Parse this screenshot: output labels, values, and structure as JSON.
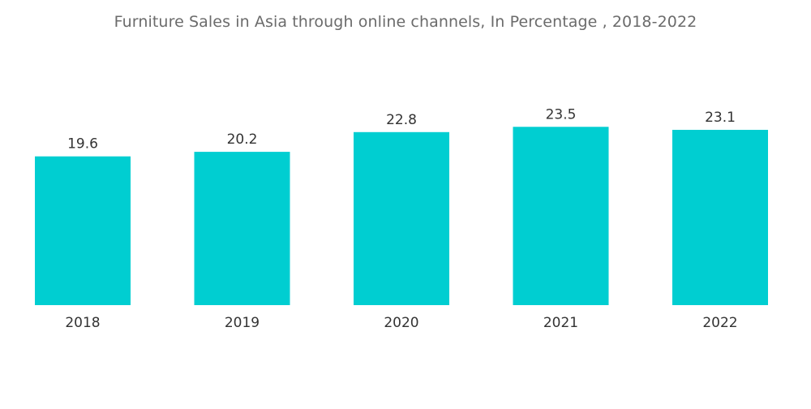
{
  "chart_data": {
    "type": "bar",
    "title": "Furniture Sales in Asia through online channels, In Percentage , 2018-2022",
    "categories": [
      "2018",
      "2019",
      "2020",
      "2021",
      "2022"
    ],
    "values": [
      19.6,
      20.2,
      22.8,
      23.5,
      23.1
    ],
    "data_labels": [
      "19.6",
      "20.2",
      "22.8",
      "23.5",
      "23.1"
    ],
    "xlabel": "",
    "ylabel": "",
    "grid": false,
    "legend": "none",
    "bar_color": "#00CED1"
  }
}
